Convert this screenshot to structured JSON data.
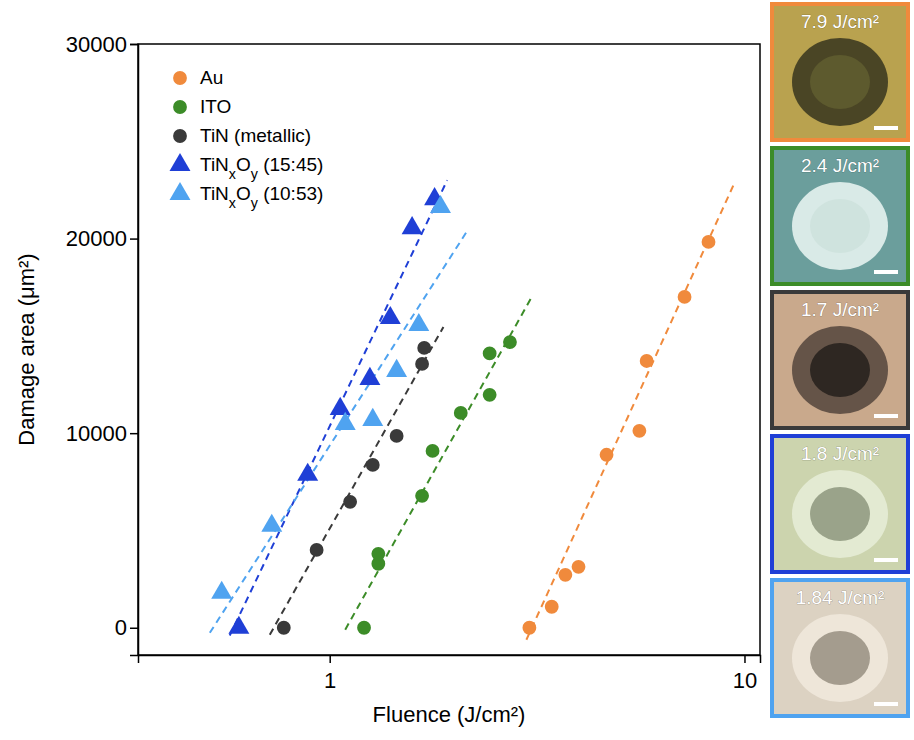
{
  "chart_data": {
    "type": "scatter",
    "x_label": "Fluence (J/cm²)",
    "y_label": "Damage area (μm²)",
    "log": "x",
    "xlim": [
      0.345,
      10.9
    ],
    "xticks": [
      1,
      10
    ],
    "ylim": [
      -1400,
      30000
    ],
    "yticks": [
      0,
      10000,
      20000,
      30000
    ],
    "legend": "upper left",
    "series": [
      {
        "name": "Au",
        "color": "#f08a3c",
        "marker": "circle",
        "x": [
          3.03,
          3.43,
          3.7,
          3.98,
          4.65,
          5.58,
          5.81,
          7.17,
          8.19
        ],
        "values": [
          0,
          1080,
          2720,
          3130,
          8890,
          10120,
          13710,
          17000,
          19830
        ],
        "fit": {
          "x": [
            2.98,
            9.46
          ],
          "values": [
            -616,
            22860
          ]
        }
      },
      {
        "name": "ITO",
        "color": "#3c8c28",
        "marker": "circle",
        "x": [
          1.21,
          1.31,
          1.31,
          1.67,
          1.77,
          2.07,
          2.43,
          2.43,
          2.72
        ],
        "values": [
          0,
          3290,
          3800,
          6780,
          9090,
          11040,
          11970,
          14100,
          14680
        ],
        "fit": {
          "x": [
            1.09,
            3.07
          ],
          "values": [
            -100,
            17000
          ]
        }
      },
      {
        "name": "TiN (metallic)",
        "color": "#3a3a3a",
        "marker": "circle",
        "x": [
          0.775,
          0.93,
          1.12,
          1.27,
          1.45,
          1.67,
          1.69
        ],
        "values": [
          0,
          4000,
          6470,
          8370,
          9860,
          13560,
          14380
        ],
        "fit": {
          "x": [
            0.717,
            1.88
          ],
          "values": [
            -360,
            15460
          ]
        }
      },
      {
        "name": "TiNxOy (15:45)",
        "color": "#1f3fd6",
        "marker": "triangle",
        "x": [
          0.604,
          0.885,
          1.06,
          1.25,
          1.4,
          1.58,
          1.79
        ],
        "values": [
          0,
          7860,
          11250,
          12790,
          15920,
          20540,
          22030
        ],
        "fit": {
          "x": [
            0.574,
            1.92
          ],
          "values": [
            -400,
            23000
          ]
        }
      },
      {
        "name": "TiNxOy (10:53)",
        "color": "#4fa3f0",
        "marker": "triangle",
        "x": [
          0.549,
          0.725,
          1.09,
          1.27,
          1.45,
          1.64,
          1.85
        ],
        "values": [
          1800,
          5240,
          10480,
          10680,
          13200,
          15560,
          21620
        ],
        "fit": {
          "x": [
            0.514,
            2.16
          ],
          "values": [
            -260,
            20490
          ]
        }
      }
    ],
    "annotations": [
      "7.9 J/cm²",
      "2.4 J/cm²",
      "1.7 J/cm²",
      "1.8 J/cm²",
      "1.84 J/cm²"
    ]
  }
}
